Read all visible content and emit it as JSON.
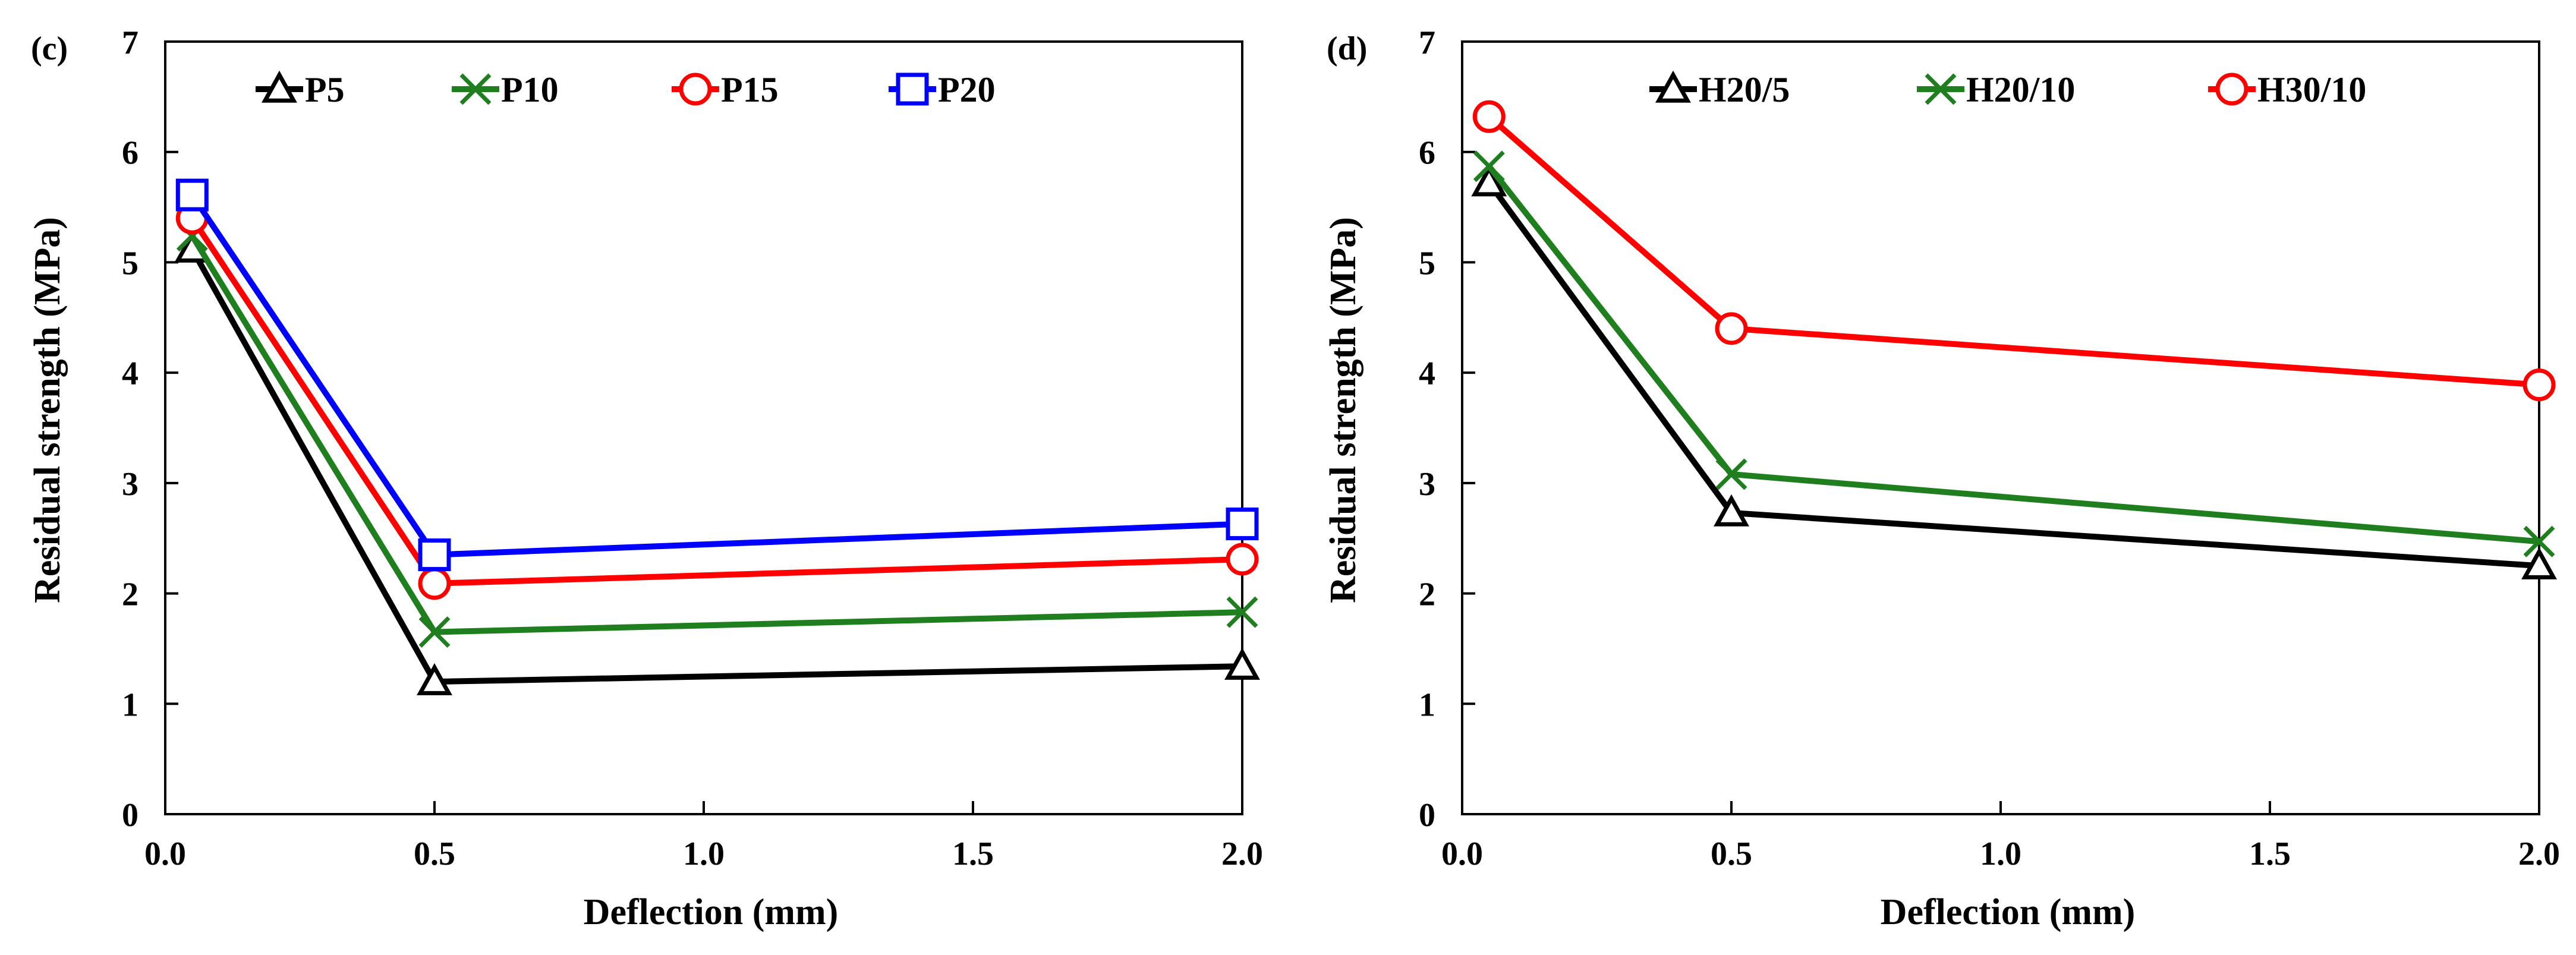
{
  "chart_data": [
    {
      "type": "line",
      "panel_label": "(c)",
      "xlabel": "Deflection (mm)",
      "ylabel": "Residual strength (MPa)",
      "xlim": [
        0,
        2
      ],
      "ylim": [
        0,
        7
      ],
      "xticks": [
        "0.0",
        "0.5",
        "1.0",
        "1.5",
        "2.0"
      ],
      "yticks": [
        "0",
        "1",
        "2",
        "3",
        "4",
        "5",
        "6",
        "7"
      ],
      "legend_position": "top",
      "x": [
        0.05,
        0.5,
        2.0
      ],
      "series": [
        {
          "name": "P5",
          "color": "#000000",
          "marker": "triangle",
          "values": [
            5.12,
            1.2,
            1.34
          ]
        },
        {
          "name": "P10",
          "color": "#1f7f1f",
          "marker": "x",
          "values": [
            5.24,
            1.65,
            1.83
          ]
        },
        {
          "name": "P15",
          "color": "#ff0000",
          "marker": "circle",
          "values": [
            5.4,
            2.09,
            2.31
          ]
        },
        {
          "name": "P20",
          "color": "#0000ff",
          "marker": "square",
          "values": [
            5.61,
            2.35,
            2.63
          ]
        }
      ]
    },
    {
      "type": "line",
      "panel_label": "(d)",
      "xlabel": "Deflection (mm)",
      "ylabel": "Residual strength (MPa)",
      "xlim": [
        0,
        2
      ],
      "ylim": [
        0,
        7
      ],
      "xticks": [
        "0.0",
        "0.5",
        "1.0",
        "1.5",
        "2.0"
      ],
      "yticks": [
        "0",
        "1",
        "2",
        "3",
        "4",
        "5",
        "6",
        "7"
      ],
      "legend_position": "top",
      "x": [
        0.05,
        0.5,
        2.0
      ],
      "series": [
        {
          "name": "H20/5",
          "color": "#000000",
          "marker": "triangle",
          "values": [
            5.72,
            2.73,
            2.25
          ]
        },
        {
          "name": "H20/10",
          "color": "#1f7f1f",
          "marker": "x",
          "values": [
            5.87,
            3.08,
            2.47
          ]
        },
        {
          "name": "H30/10",
          "color": "#ff0000",
          "marker": "circle",
          "values": [
            6.32,
            4.4,
            3.89
          ]
        }
      ]
    }
  ]
}
